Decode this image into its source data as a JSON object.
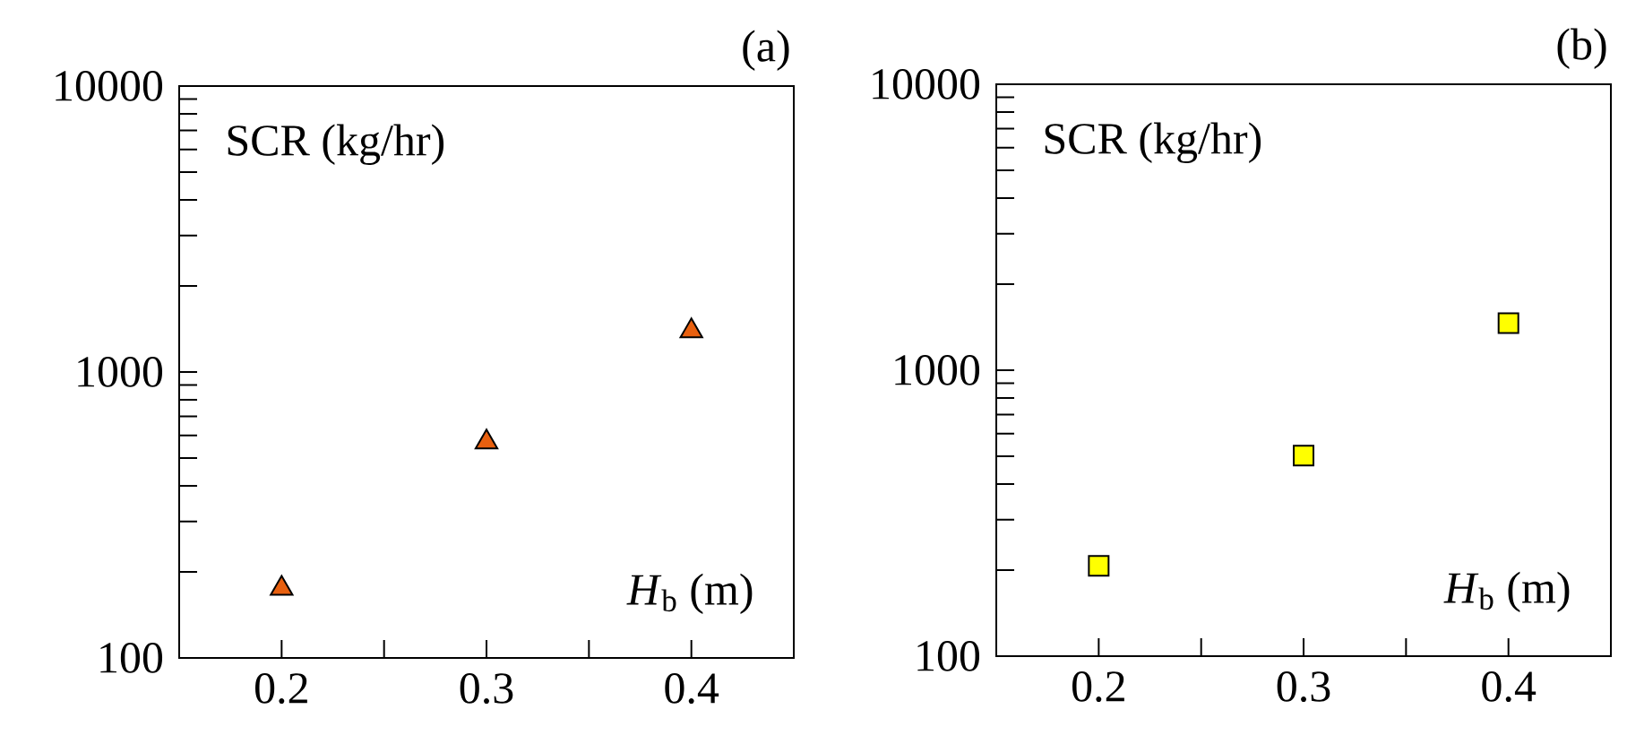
{
  "chart_data": [
    {
      "type": "scatter",
      "title": "(a)",
      "xlabel": "*H*$_{b}$ (m)",
      "ylabel": "SCR (kg/hr)",
      "log": "y",
      "marker": "triangle",
      "x": [
        0.2,
        0.3,
        0.4
      ],
      "series": [
        {
          "color": "#e8600f",
          "values": [
            175,
            568,
            1390
          ]
        }
      ],
      "xlim": [
        0.15,
        0.45
      ],
      "xticks": [
        0.2,
        0.3,
        0.4
      ],
      "ylim": [
        100,
        10000
      ],
      "yticks": [
        100,
        1000,
        10000
      ]
    },
    {
      "type": "scatter",
      "title": "(b)",
      "xlabel": "*H*$_{b}$ (m)",
      "ylabel": "SCR (kg/hr)",
      "log": "y",
      "marker": "square",
      "x": [
        0.2,
        0.3,
        0.4
      ],
      "series": [
        {
          "color": "#ffff00",
          "values": [
            207,
            503,
            1460
          ]
        }
      ],
      "xlim": [
        0.15,
        0.45
      ],
      "xticks": [
        0.2,
        0.3,
        0.4
      ],
      "ylim": [
        100,
        10000
      ],
      "yticks": [
        100,
        1000,
        10000
      ]
    }
  ]
}
